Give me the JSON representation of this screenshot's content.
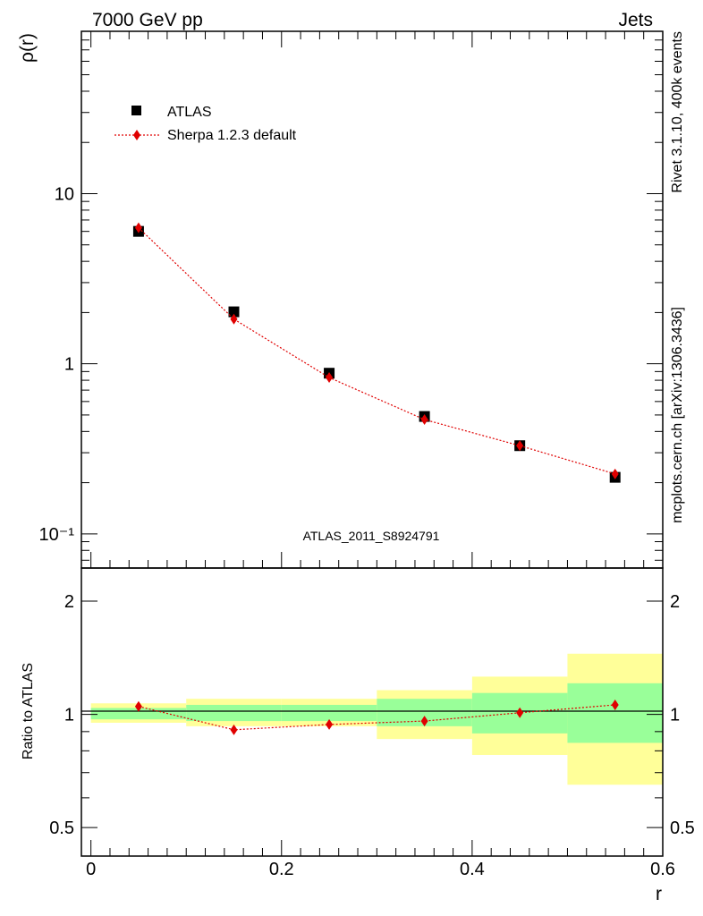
{
  "header": {
    "left": "7000 GeV pp",
    "right": "Jets"
  },
  "side_labels": {
    "rivet": "Rivet 3.1.10,  400k events",
    "mcplots": "mcplots.cern.ch [arXiv:1306.3436]"
  },
  "analysis_id": "ATLAS_2011_S8924791",
  "colors": {
    "data": "#000000",
    "mc": "#e00000",
    "band_outer": "#ffff99",
    "band_inner": "#99ff99"
  },
  "chart_data": [
    {
      "type": "scatter",
      "panel": "main",
      "ylabel": "ρ(r)",
      "yscale": "log",
      "xlim": [
        -0.01,
        0.6
      ],
      "ylim": [
        0.063,
        90
      ],
      "y_ticks": [
        {
          "value": 10,
          "label": "10"
        },
        {
          "value": 1,
          "label": "1"
        },
        {
          "value": 0.1,
          "label": "10⁻¹"
        }
      ],
      "legend_position": "top-left",
      "series": [
        {
          "name": "ATLAS",
          "marker": "square",
          "x": [
            0.05,
            0.15,
            0.25,
            0.35,
            0.45,
            0.55
          ],
          "y": [
            6.0,
            2.02,
            0.88,
            0.49,
            0.33,
            0.215
          ]
        },
        {
          "name": "Sherpa 1.2.3 default",
          "marker": "diamond",
          "line": "dotted",
          "x": [
            0.05,
            0.15,
            0.25,
            0.35,
            0.45,
            0.55
          ],
          "y": [
            6.3,
            1.83,
            0.83,
            0.47,
            0.33,
            0.225
          ]
        }
      ]
    },
    {
      "type": "scatter",
      "panel": "ratio",
      "xlabel": "r",
      "ylabel": "Ratio to ATLAS",
      "yscale": "log",
      "xlim": [
        -0.01,
        0.6
      ],
      "ylim": [
        0.42,
        2.45
      ],
      "x_ticks": [
        {
          "value": 0,
          "label": "0"
        },
        {
          "value": 0.2,
          "label": "0.2"
        },
        {
          "value": 0.4,
          "label": "0.4"
        },
        {
          "value": 0.6,
          "label": "0.6"
        }
      ],
      "y_ticks": [
        {
          "value": 2,
          "label": "2"
        },
        {
          "value": 1,
          "label": "1"
        },
        {
          "value": 0.5,
          "label": "0.5"
        }
      ],
      "bands": [
        {
          "x0": 0.0,
          "x1": 0.1,
          "outer": [
            0.95,
            1.07
          ],
          "inner": [
            0.97,
            1.04
          ]
        },
        {
          "x0": 0.1,
          "x1": 0.2,
          "outer": [
            0.93,
            1.1
          ],
          "inner": [
            0.96,
            1.06
          ]
        },
        {
          "x0": 0.2,
          "x1": 0.3,
          "outer": [
            0.93,
            1.1
          ],
          "inner": [
            0.96,
            1.06
          ]
        },
        {
          "x0": 0.3,
          "x1": 0.4,
          "outer": [
            0.86,
            1.16
          ],
          "inner": [
            0.93,
            1.1
          ]
        },
        {
          "x0": 0.4,
          "x1": 0.5,
          "outer": [
            0.78,
            1.26
          ],
          "inner": [
            0.89,
            1.14
          ]
        },
        {
          "x0": 0.5,
          "x1": 0.6,
          "outer": [
            0.65,
            1.45
          ],
          "inner": [
            0.84,
            1.21
          ]
        }
      ],
      "series": [
        {
          "name": "Sherpa 1.2.3 default",
          "marker": "diamond",
          "line": "dotted",
          "x": [
            0.05,
            0.15,
            0.25,
            0.35,
            0.45,
            0.55
          ],
          "y": [
            1.05,
            0.91,
            0.94,
            0.96,
            1.01,
            1.06
          ]
        }
      ]
    }
  ]
}
